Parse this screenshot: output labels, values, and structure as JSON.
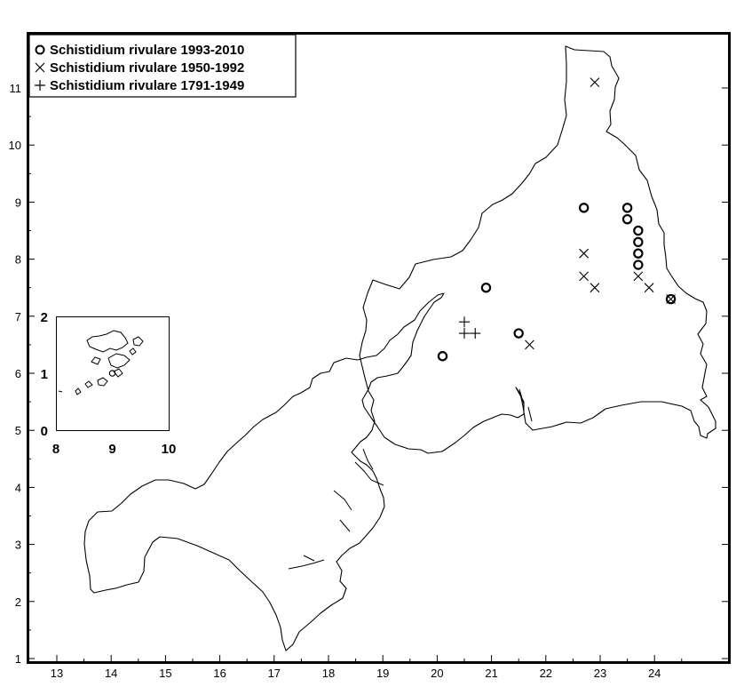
{
  "legend": {
    "items": [
      {
        "symbol": "circle",
        "label": "Schistidium rivulare 1993-2010"
      },
      {
        "symbol": "cross",
        "label": "Schistidium rivulare 1950-1992"
      },
      {
        "symbol": "plus",
        "label": "Schistidium rivulare 1791-1949"
      }
    ]
  },
  "axes": {
    "x_ticks": [
      "13",
      "14",
      "15",
      "16",
      "17",
      "18",
      "19",
      "20",
      "21",
      "22",
      "23",
      "24"
    ],
    "y_ticks": [
      "1",
      "2",
      "3",
      "4",
      "5",
      "6",
      "7",
      "8",
      "9",
      "10",
      "11"
    ],
    "xlim": [
      12.5,
      24.9
    ],
    "ylim": [
      0.9,
      11.9
    ]
  },
  "inset": {
    "x_ticks": [
      "8",
      "9",
      "10"
    ],
    "y_ticks": [
      "0",
      "1",
      "2"
    ],
    "xlim": [
      8,
      10
    ],
    "ylim": [
      0,
      2
    ]
  },
  "chart_data": {
    "type": "scatter",
    "series": [
      {
        "name": "Schistidium rivulare 1993-2010",
        "marker": "circle",
        "points": [
          [
            20.1,
            6.3
          ],
          [
            20.9,
            7.5
          ],
          [
            21.5,
            6.7
          ],
          [
            22.7,
            8.9
          ],
          [
            23.5,
            8.9
          ],
          [
            23.5,
            8.7
          ],
          [
            23.7,
            8.5
          ],
          [
            23.7,
            8.3
          ],
          [
            23.7,
            8.1
          ],
          [
            23.7,
            7.9
          ],
          [
            24.3,
            7.3
          ]
        ]
      },
      {
        "name": "Schistidium rivulare 1950-1992",
        "marker": "cross",
        "points": [
          [
            22.9,
            11.1
          ],
          [
            22.7,
            8.1
          ],
          [
            22.7,
            7.7
          ],
          [
            22.9,
            7.5
          ],
          [
            23.7,
            7.7
          ],
          [
            23.9,
            7.5
          ],
          [
            24.3,
            7.3
          ],
          [
            21.7,
            6.5
          ]
        ]
      },
      {
        "name": "Schistidium rivulare 1791-1949",
        "marker": "plus",
        "points": [
          [
            20.5,
            6.9
          ],
          [
            20.5,
            6.7
          ],
          [
            20.7,
            6.7
          ]
        ]
      }
    ],
    "inset_series": [
      {
        "name": "Schistidium rivulare 1993-2010",
        "marker": "circle",
        "points": [
          [
            9.0,
            1.0
          ]
        ]
      }
    ]
  }
}
